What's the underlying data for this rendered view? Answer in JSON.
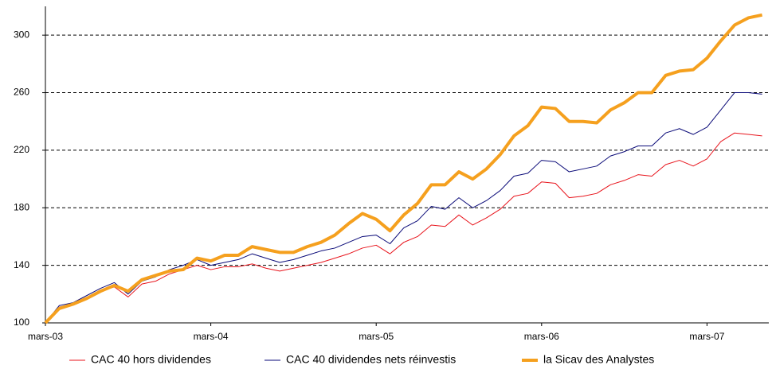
{
  "chart_data": {
    "type": "line",
    "categories": [
      "mars-03",
      null,
      null,
      null,
      null,
      null,
      null,
      null,
      null,
      null,
      null,
      null,
      "mars-04",
      null,
      null,
      null,
      null,
      null,
      null,
      null,
      null,
      null,
      null,
      null,
      "mars-05",
      null,
      null,
      null,
      null,
      null,
      null,
      null,
      null,
      null,
      null,
      null,
      "mars-06",
      null,
      null,
      null,
      null,
      null,
      null,
      null,
      null,
      null,
      null,
      null,
      "mars-07",
      null,
      null,
      null,
      null
    ],
    "series": [
      {
        "name": "CAC 40 hors dividendes",
        "color": "#e8141c",
        "width": 1,
        "values": [
          100,
          111,
          113,
          117,
          122,
          125,
          118,
          127,
          129,
          134,
          137,
          140,
          137,
          139,
          139,
          141,
          138,
          136,
          138,
          140,
          142,
          145,
          148,
          152,
          154,
          148,
          156,
          160,
          168,
          167,
          175,
          168,
          173,
          179,
          188,
          190,
          198,
          197,
          187,
          188,
          190,
          196,
          199,
          203,
          202,
          210,
          213,
          209,
          214,
          226,
          232,
          231,
          230
        ]
      },
      {
        "name": "CAC 40 dividendes nets réinvestis",
        "color": "#0a0a78",
        "width": 1,
        "values": [
          100,
          112,
          114,
          119,
          124,
          128,
          120,
          129,
          132,
          137,
          140,
          144,
          140,
          142,
          144,
          148,
          145,
          142,
          144,
          147,
          150,
          152,
          156,
          160,
          161,
          155,
          166,
          171,
          181,
          179,
          187,
          180,
          185,
          192,
          202,
          204,
          213,
          212,
          205,
          207,
          209,
          216,
          219,
          223,
          223,
          232,
          235,
          231,
          236,
          248,
          260,
          260,
          259
        ]
      },
      {
        "name": "la Sicav des Analystes",
        "color": "#f5a01e",
        "width": 4,
        "values": [
          100,
          110,
          113,
          117,
          122,
          126,
          122,
          130,
          133,
          136,
          137,
          145,
          143,
          147,
          147,
          153,
          151,
          149,
          149,
          153,
          156,
          161,
          169,
          176,
          172,
          164,
          175,
          183,
          196,
          196,
          205,
          200,
          207,
          217,
          230,
          237,
          250,
          249,
          240,
          240,
          239,
          248,
          253,
          260,
          260,
          272,
          275,
          276,
          284,
          296,
          307,
          312,
          314
        ]
      }
    ],
    "ylim": [
      100,
      320
    ],
    "yticks": [
      100,
      140,
      180,
      220,
      260,
      300
    ],
    "grid": true
  }
}
